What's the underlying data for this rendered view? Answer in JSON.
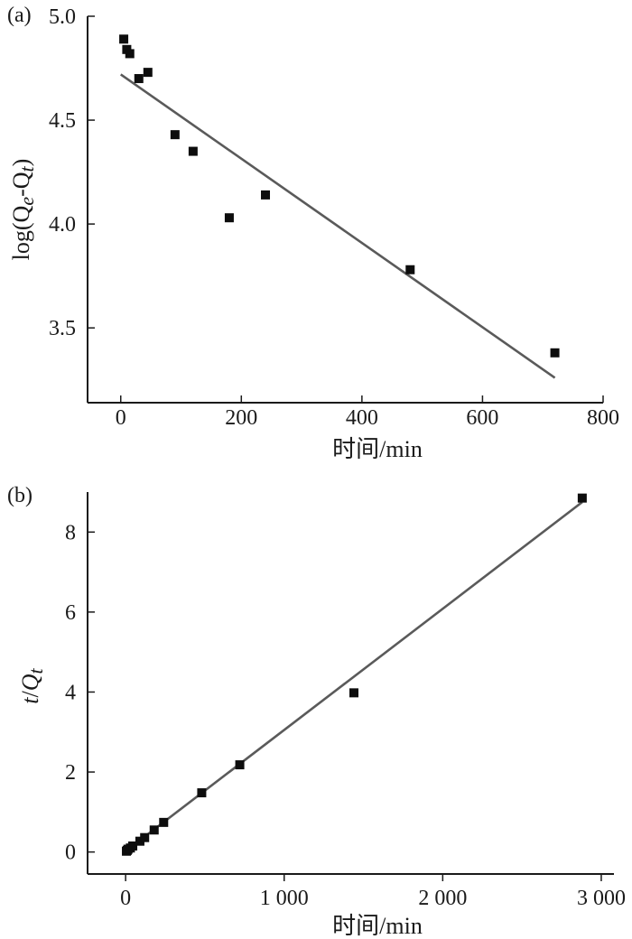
{
  "chart_data": [
    {
      "panel_label": "(a)",
      "type": "scatter",
      "xlabel": "时间/min",
      "ylabel_html": "log(Q<tspan font-style=\"italic\" font-size=\"22\" dy=\"5\">e</tspan><tspan dy=\"-5\">-Q</tspan><tspan font-style=\"italic\" font-size=\"22\" dy=\"5\">t</tspan><tspan dy=\"-5\">)</tspan>",
      "ylabel_text": "log(Qe-Qt)",
      "xlim": [
        -55,
        800
      ],
      "ylim": [
        3.14,
        5.0
      ],
      "xticks": [
        0,
        200,
        400,
        600,
        800
      ],
      "xtick_labels": [
        "0",
        "200",
        "400",
        "600",
        "800"
      ],
      "yticks": [
        3.5,
        4.0,
        4.5,
        5.0
      ],
      "ytick_labels": [
        "3.5",
        "4.0",
        "4.5",
        "5.0"
      ],
      "series": [
        {
          "x": [
            5,
            10,
            15,
            30,
            45,
            90,
            120,
            180,
            240,
            480,
            720
          ],
          "y": [
            4.89,
            4.84,
            4.82,
            4.7,
            4.73,
            4.43,
            4.35,
            4.03,
            4.14,
            3.78,
            3.38
          ]
        }
      ],
      "fit_line": {
        "x": [
          0,
          720
        ],
        "y": [
          4.72,
          3.26
        ]
      }
    },
    {
      "panel_label": "(b)",
      "type": "scatter",
      "xlabel": "时间/min",
      "ylabel_html": "<tspan font-style=\"italic\">t</tspan>/<tspan font-style=\"italic\">Q</tspan><tspan font-style=\"italic\" font-size=\"22\" dy=\"5\">t</tspan>",
      "ylabel_text": "t/Qt",
      "xlim": [
        -240,
        3080
      ],
      "ylim": [
        -0.55,
        9.0
      ],
      "xticks": [
        0,
        1000,
        2000,
        3000
      ],
      "xtick_labels": [
        "0",
        "1 000",
        "2 000",
        "3 000"
      ],
      "yticks": [
        0,
        2,
        4,
        6,
        8
      ],
      "ytick_labels": [
        "0",
        "2",
        "4",
        "6",
        "8"
      ],
      "series": [
        {
          "x": [
            5,
            10,
            15,
            30,
            45,
            90,
            120,
            180,
            240,
            480,
            720,
            1440,
            2880
          ],
          "y": [
            0.02,
            0.04,
            0.07,
            0.1,
            0.15,
            0.27,
            0.36,
            0.55,
            0.74,
            1.48,
            2.18,
            3.98,
            8.85
          ]
        }
      ],
      "fit_line": {
        "x": [
          0,
          2880
        ],
        "y": [
          0.02,
          8.75
        ]
      }
    }
  ]
}
